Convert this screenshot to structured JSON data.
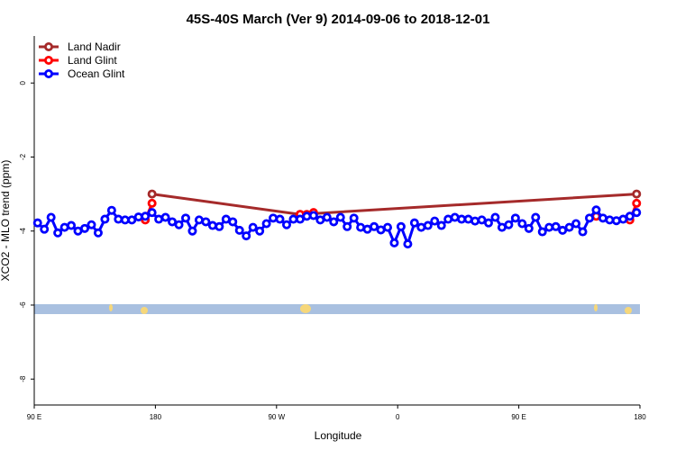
{
  "chart_data": {
    "type": "line",
    "title": "45S-40S March (Ver 9)   2014-09-06 to 2018-12-01",
    "xlabel": "Longitude",
    "ylabel": "XCO2 - MLO trend (ppm)",
    "xlim": [
      90,
      540
    ],
    "ylim": [
      -8.7,
      1.27
    ],
    "xticks": [
      {
        "value": 90,
        "label": "90 E"
      },
      {
        "value": 180,
        "label": "180"
      },
      {
        "value": 270,
        "label": "90 W"
      },
      {
        "value": 360,
        "label": "0"
      },
      {
        "value": 450,
        "label": "90 E"
      },
      {
        "value": 540,
        "label": "180"
      }
    ],
    "yticks": [
      0,
      -2,
      -4,
      -6,
      -8
    ],
    "legend": "top-left",
    "series": [
      {
        "name": "Land Nadir",
        "color": "#a52a2a",
        "x": [
          177.5,
          287.5,
          537.5
        ],
        "values": [
          -3.0,
          -3.55,
          -3.0
        ]
      },
      {
        "name": "Land Glint",
        "color": "#ff0000",
        "x": [
          172.5,
          177.5,
          182.5,
          287.5,
          292.5,
          297.5,
          302.5,
          507.5,
          512.5,
          532.5,
          537.5
        ],
        "values": [
          -3.7,
          -3.25,
          null,
          -3.55,
          -3.55,
          -3.5,
          null,
          -3.6,
          null,
          -3.7,
          -3.25
        ]
      },
      {
        "name": "Ocean Glint",
        "color": "#0000ff",
        "x": [
          92.5,
          97.5,
          102.5,
          107.5,
          112.5,
          117.5,
          122.5,
          127.5,
          132.5,
          137.5,
          142.5,
          147.5,
          152.5,
          157.5,
          162.5,
          167.5,
          172.5,
          177.5,
          182.5,
          187.5,
          192.5,
          197.5,
          202.5,
          207.5,
          212.5,
          217.5,
          222.5,
          227.5,
          232.5,
          237.5,
          242.5,
          247.5,
          252.5,
          257.5,
          262.5,
          267.5,
          272.5,
          277.5,
          282.5,
          287.5,
          292.5,
          297.5,
          302.5,
          307.5,
          312.5,
          317.5,
          322.5,
          327.5,
          332.5,
          337.5,
          342.5,
          347.5,
          352.5,
          357.5,
          362.5,
          367.5,
          372.5,
          377.5,
          382.5,
          387.5,
          392.5,
          397.5,
          402.5,
          407.5,
          412.5,
          417.5,
          422.5,
          427.5,
          432.5,
          437.5,
          442.5,
          447.5,
          452.5,
          457.5,
          462.5,
          467.5,
          472.5,
          477.5,
          482.5,
          487.5,
          492.5,
          497.5,
          502.5,
          507.5,
          512.5,
          517.5,
          522.5,
          527.5,
          532.5,
          537.5
        ],
        "values": [
          -3.78,
          -3.95,
          -3.63,
          -4.05,
          -3.9,
          -3.85,
          -4.0,
          -3.93,
          -3.83,
          -4.05,
          -3.68,
          -3.44,
          -3.68,
          -3.7,
          -3.7,
          -3.62,
          -3.6,
          -3.5,
          -3.68,
          -3.63,
          -3.75,
          -3.83,
          -3.65,
          -4.0,
          -3.7,
          -3.75,
          -3.85,
          -3.88,
          -3.68,
          -3.75,
          -3.98,
          -4.13,
          -3.9,
          -4.0,
          -3.8,
          -3.65,
          -3.68,
          -3.83,
          -3.68,
          -3.68,
          -3.6,
          -3.58,
          -3.7,
          -3.63,
          -3.75,
          -3.63,
          -3.88,
          -3.65,
          -3.9,
          -3.95,
          -3.88,
          -3.97,
          -3.9,
          -4.32,
          -3.88,
          -4.35,
          -3.78,
          -3.9,
          -3.85,
          -3.73,
          -3.85,
          -3.68,
          -3.63,
          -3.68,
          -3.68,
          -3.73,
          -3.7,
          -3.78,
          -3.63,
          -3.9,
          -3.83,
          -3.65,
          -3.8,
          -3.93,
          -3.63,
          -4.02,
          -3.9,
          -3.88,
          -3.98,
          -3.9,
          -3.8,
          -4.02,
          -3.65,
          -3.43,
          -3.65,
          -3.7,
          -3.72,
          -3.68,
          -3.6,
          -3.5
        ]
      }
    ]
  }
}
